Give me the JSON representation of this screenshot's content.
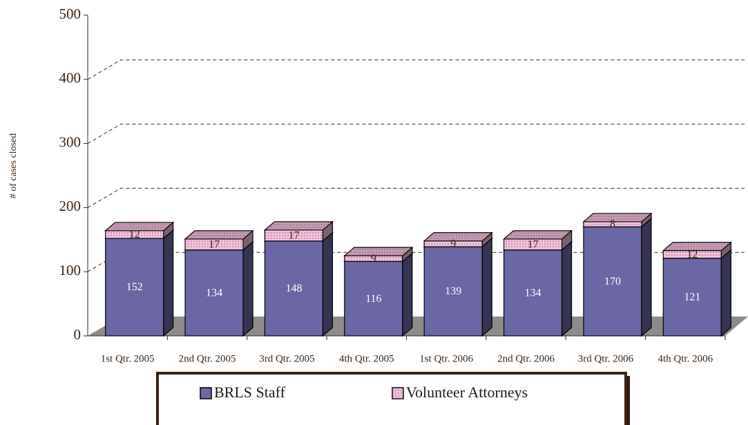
{
  "chart_data": {
    "type": "bar",
    "stacked": true,
    "y_label": "# of cases closed",
    "categories": [
      "1st Qtr. 2005",
      "2nd Qtr. 2005",
      "3rd Qtr. 2005",
      "4th Qtr. 2005",
      "1st Qtr. 2006",
      "2nd Qtr. 2006",
      "3rd Qtr. 2006",
      "4th Qtr. 2006"
    ],
    "series": [
      {
        "name": "BRLS Staff",
        "color": "#6a67a4",
        "values": [
          152,
          134,
          148,
          116,
          139,
          134,
          170,
          121
        ]
      },
      {
        "name": "Volunteer Attorneys",
        "color": "#f0c4dc",
        "values": [
          12,
          17,
          17,
          9,
          9,
          17,
          8,
          12
        ]
      }
    ],
    "ylim": [
      0,
      500
    ],
    "yticks": [
      0,
      100,
      200,
      300,
      400,
      500
    ],
    "grid": true,
    "legend": "bottom"
  }
}
